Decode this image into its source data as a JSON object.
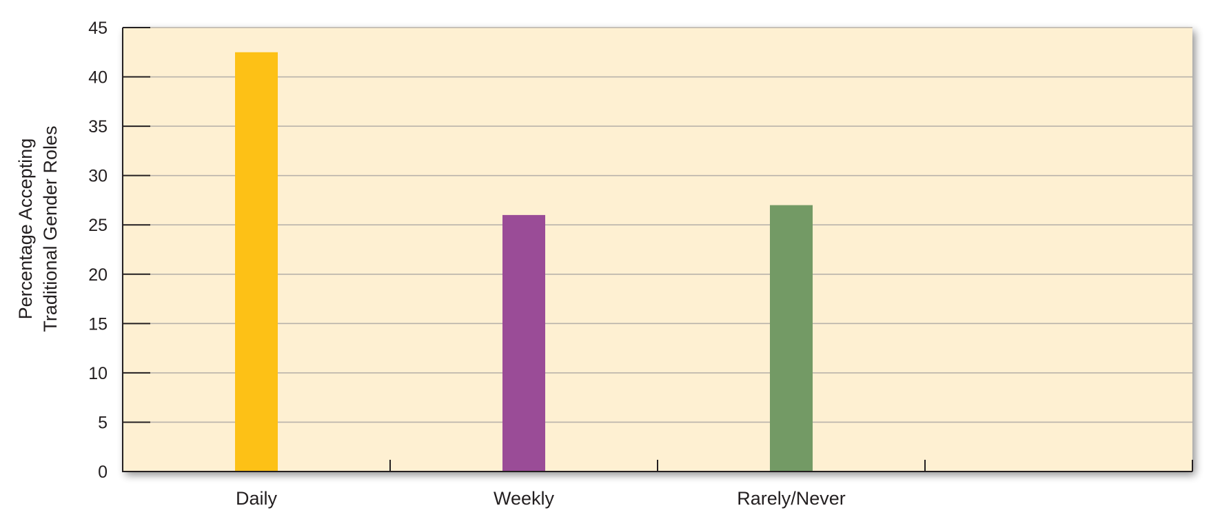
{
  "chart_data": {
    "type": "bar",
    "title": "",
    "xlabel": "",
    "ylabel": "Percentage Accepting Traditional Gender Roles",
    "ylabel_lines": [
      "Percentage Accepting",
      "Traditional Gender Roles"
    ],
    "categories": [
      "Daily",
      "Weekly",
      "Rarely/Never",
      ""
    ],
    "values": [
      42.5,
      26,
      27,
      null
    ],
    "colors": [
      "#FDC116",
      "#9A4C97",
      "#739A65"
    ],
    "ylim": [
      0,
      45
    ],
    "yticks": [
      0,
      5,
      10,
      15,
      20,
      25,
      30,
      35,
      40,
      45
    ],
    "grid": true,
    "plot_background": "#FEF0D2",
    "gridline_color": "#B8B2AA",
    "legend": "none"
  }
}
